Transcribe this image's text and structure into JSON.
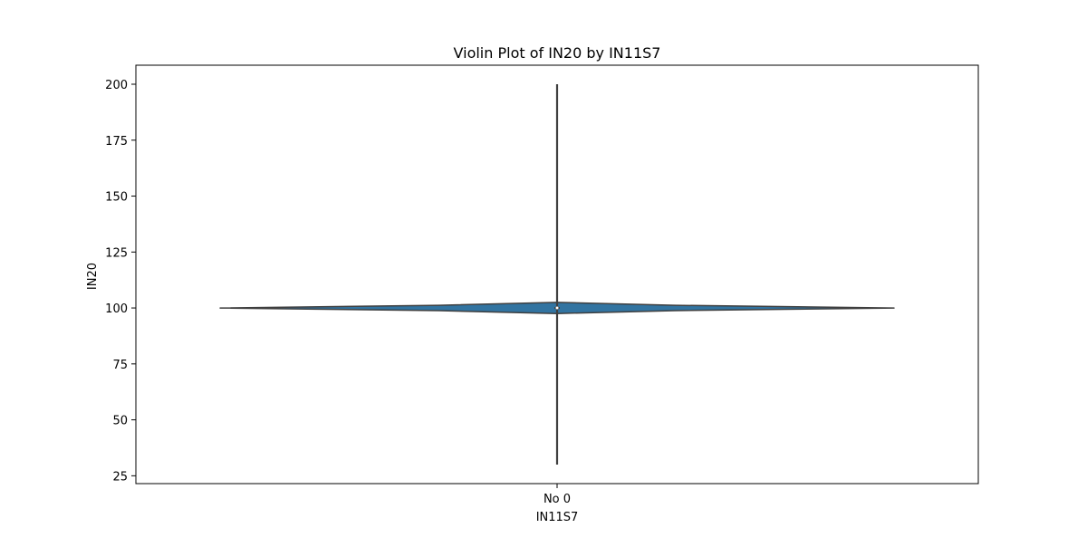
{
  "chart_data": {
    "type": "violin",
    "title": "Violin Plot of IN20 by IN11S7",
    "xlabel": "IN11S7",
    "ylabel": "IN20",
    "categories": [
      "No 0"
    ],
    "ylim": [
      21.5,
      208.5
    ],
    "yticks": [
      25,
      50,
      75,
      100,
      125,
      150,
      175,
      200
    ],
    "ytick_labels": [
      "25",
      "50",
      "75",
      "100",
      "125",
      "150",
      "175",
      "200"
    ],
    "grid": false,
    "legend": "none",
    "series": [
      {
        "category": "No 0",
        "min": 30,
        "max": 200,
        "q1": 100,
        "median": 100,
        "q3": 100,
        "density_center": 100,
        "density_extent": [
          97.5,
          102.5
        ],
        "density_profile": [
          {
            "y": 97.5,
            "w": 0.0
          },
          {
            "y": 98.8,
            "w": 0.35
          },
          {
            "y": 100.0,
            "w": 1.0
          },
          {
            "y": 101.2,
            "w": 0.35
          },
          {
            "y": 102.5,
            "w": 0.0
          }
        ]
      }
    ],
    "colors": {
      "violin_fill": "#3274a1",
      "violin_edge": "#3f3f3f",
      "box": "#3f3f3f",
      "axes": "#000000",
      "background": "#ffffff"
    }
  }
}
